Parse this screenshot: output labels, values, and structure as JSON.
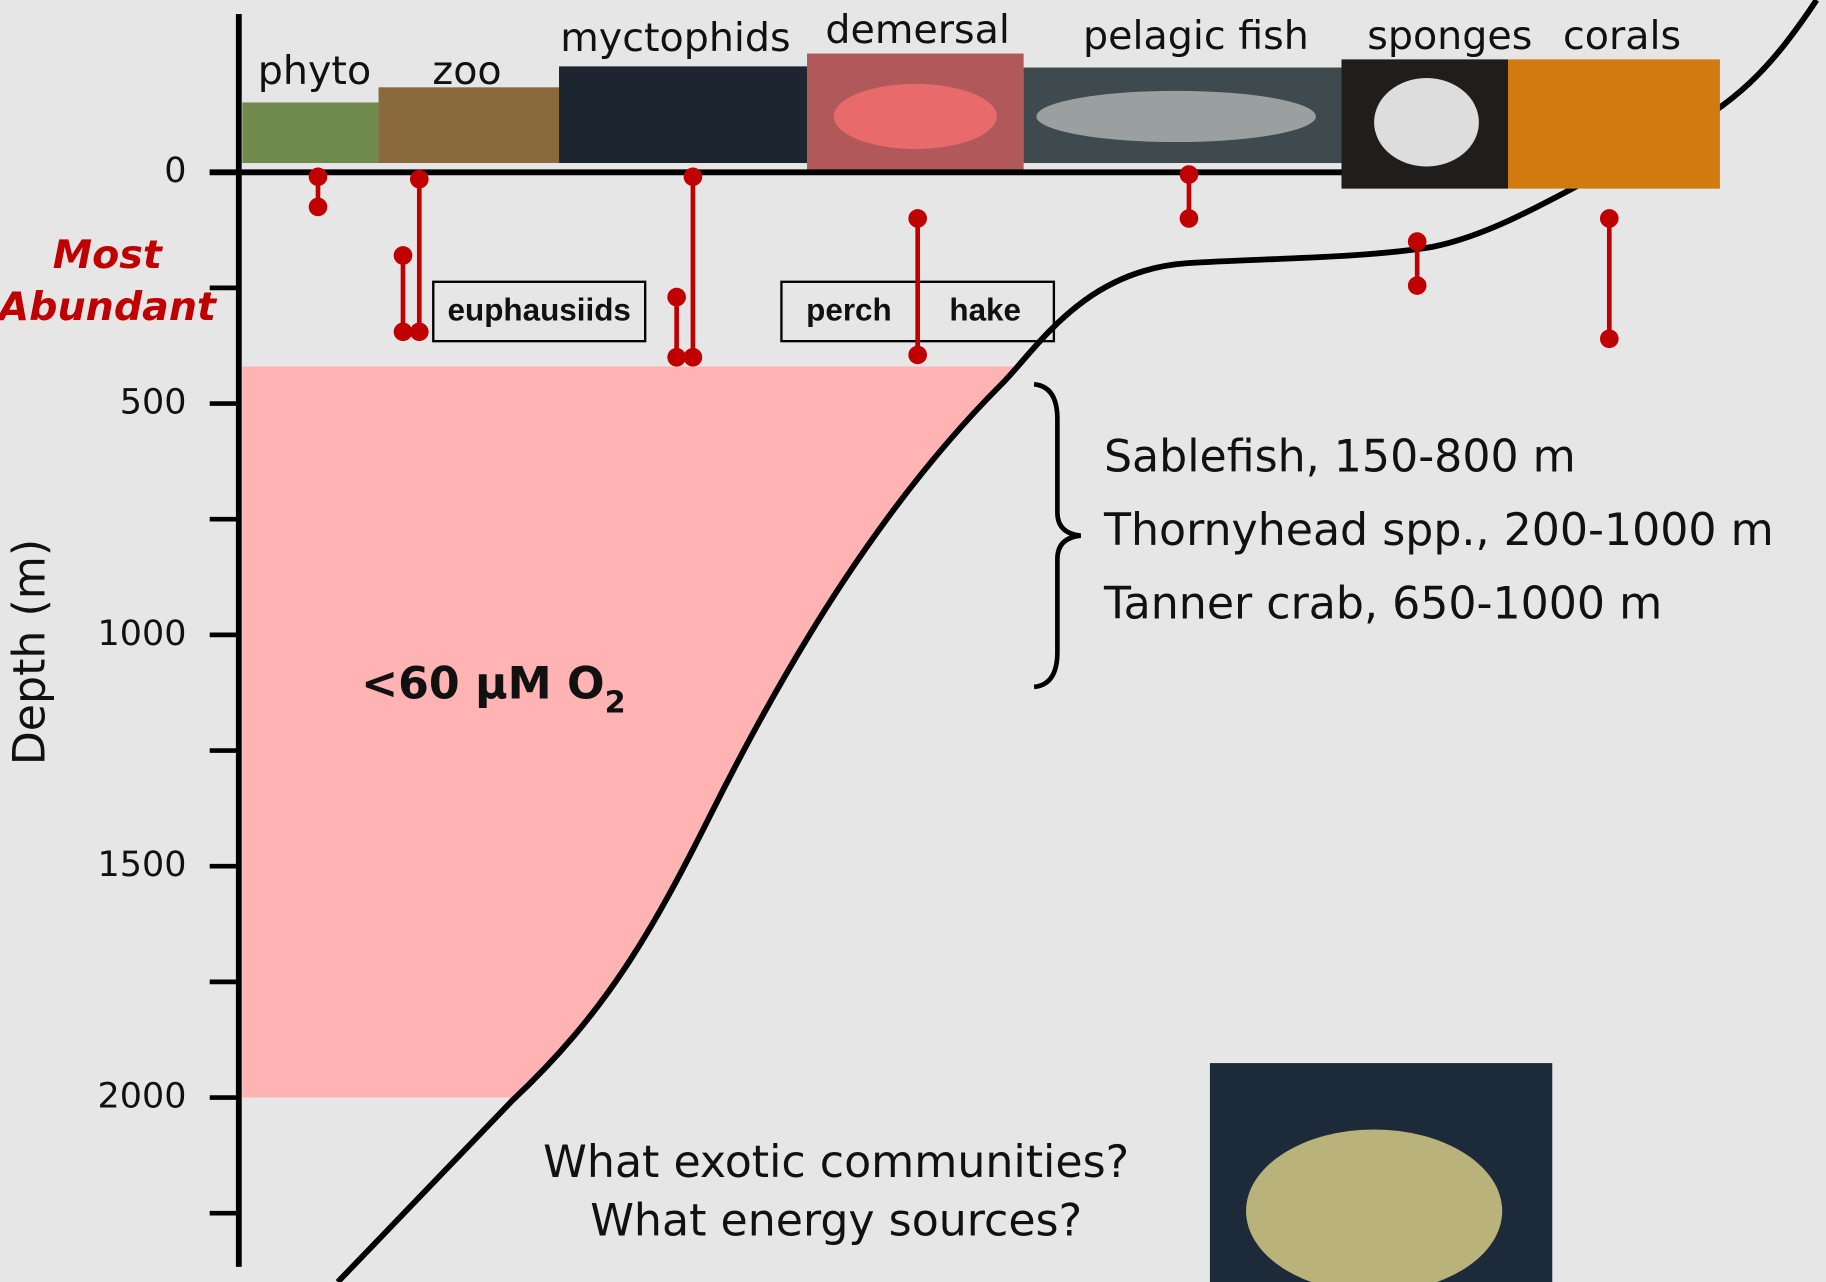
{
  "axis": {
    "label": "Depth (m)",
    "ylim": [
      -342,
      2366
    ],
    "ticks": [
      0,
      500,
      1000,
      1500,
      2000
    ],
    "minor_ticks": [
      250,
      750,
      1250,
      1750,
      2250
    ]
  },
  "most_abundant": [
    "Most",
    "Abundant"
  ],
  "groups": [
    {
      "label": "phyto",
      "ranges": [
        [
          10,
          75
        ]
      ]
    },
    {
      "label": "zoo",
      "ranges": [
        [
          15,
          345
        ],
        [
          180,
          345
        ]
      ]
    },
    {
      "label": "myctophids",
      "ranges": [
        [
          10,
          400
        ],
        [
          270,
          400
        ]
      ]
    },
    {
      "label": "demersal",
      "ranges": [
        [
          100,
          395
        ]
      ]
    },
    {
      "label": "pelagic fish",
      "ranges": [
        [
          5,
          100
        ]
      ]
    },
    {
      "label": "sponges",
      "ranges": [
        [
          150,
          245
        ]
      ]
    },
    {
      "label": "corals",
      "ranges": [
        [
          100,
          360
        ]
      ]
    }
  ],
  "boxes": [
    [
      "euphausiids"
    ],
    [
      "perch",
      "hake"
    ]
  ],
  "hypoxic_zone": {
    "label": "<60 μM O",
    "subscript": "2",
    "depth": [
      420,
      2000
    ]
  },
  "depth_ranges": [
    "Sablefish, 150-800 m",
    "Thornyhead spp., 200-1000 m",
    "Tanner crab, 650-1000 m"
  ],
  "questions": [
    "What exotic communities?",
    "What energy sources?"
  ]
}
